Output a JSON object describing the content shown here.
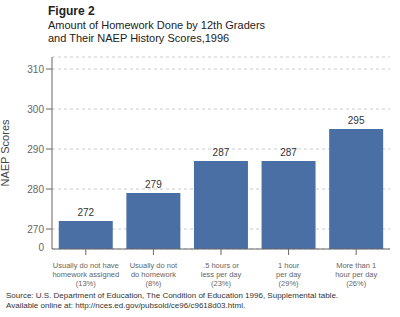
{
  "chart_data": {
    "type": "bar",
    "title": "Figure 2",
    "subtitle": "Amount of Homework Done by 12th Graders\nand Their NAEP History Scores,1996",
    "categories": [
      "Usually do not have\nhomework assigned\n(13%)",
      "Usually do not\ndo homework\n(8%)",
      ".5 hours or\nless per day\n(23%)",
      "1 hour\nper day\n(29%)",
      "More than 1\nhour per day\n(26%)"
    ],
    "values": [
      272,
      279,
      287,
      287,
      295
    ],
    "color": "#4a6fa5",
    "ylabel": "NAEP Scores",
    "ylim": [
      265,
      313
    ],
    "yticks": [
      270,
      280,
      290,
      300,
      310
    ],
    "grid": true,
    "data_labels": true,
    "annotations": [
      "0",
      "Source: U.S. Department of Education, The Condition of Education 1996, Supplemental table.",
      "Available online at: http://nces.ed.gov/pubsold/ce96/c9618d03.html."
    ]
  }
}
